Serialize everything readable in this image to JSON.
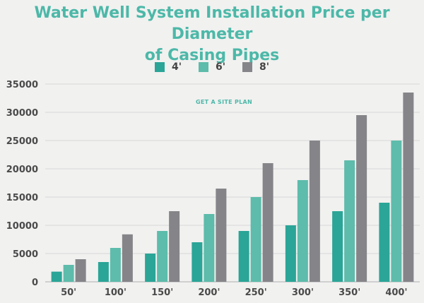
{
  "chart_data": {
    "type": "bar",
    "title": "Water Well System Installation Price per Diameter of Casing Pipes",
    "title_lines": [
      "Water Well System Installation Price per Diameter",
      "of Casing Pipes"
    ],
    "categories": [
      "50'",
      "100'",
      "150'",
      "200'",
      "250'",
      "300'",
      "350'",
      "400'"
    ],
    "series": [
      {
        "name": "4'",
        "color": "#2aa597",
        "values": [
          1800,
          3500,
          5000,
          7000,
          9000,
          10000,
          12500,
          14000
        ]
      },
      {
        "name": "6'",
        "color": "#5dbcab",
        "values": [
          3000,
          6000,
          9000,
          12000,
          15000,
          18000,
          21500,
          25000
        ]
      },
      {
        "name": "8'",
        "color": "#858589",
        "values": [
          4000,
          8400,
          12500,
          16500,
          21000,
          25000,
          29500,
          33500
        ]
      }
    ],
    "yticks": [
      "0",
      "5000",
      "10000",
      "15000",
      "20000",
      "25000",
      "30000",
      "35000"
    ],
    "ylim": [
      0,
      35000
    ],
    "xlabel": "",
    "ylabel": "",
    "grid": true,
    "legend_position": "top",
    "watermark": "GET A SITE PLAN .com"
  }
}
